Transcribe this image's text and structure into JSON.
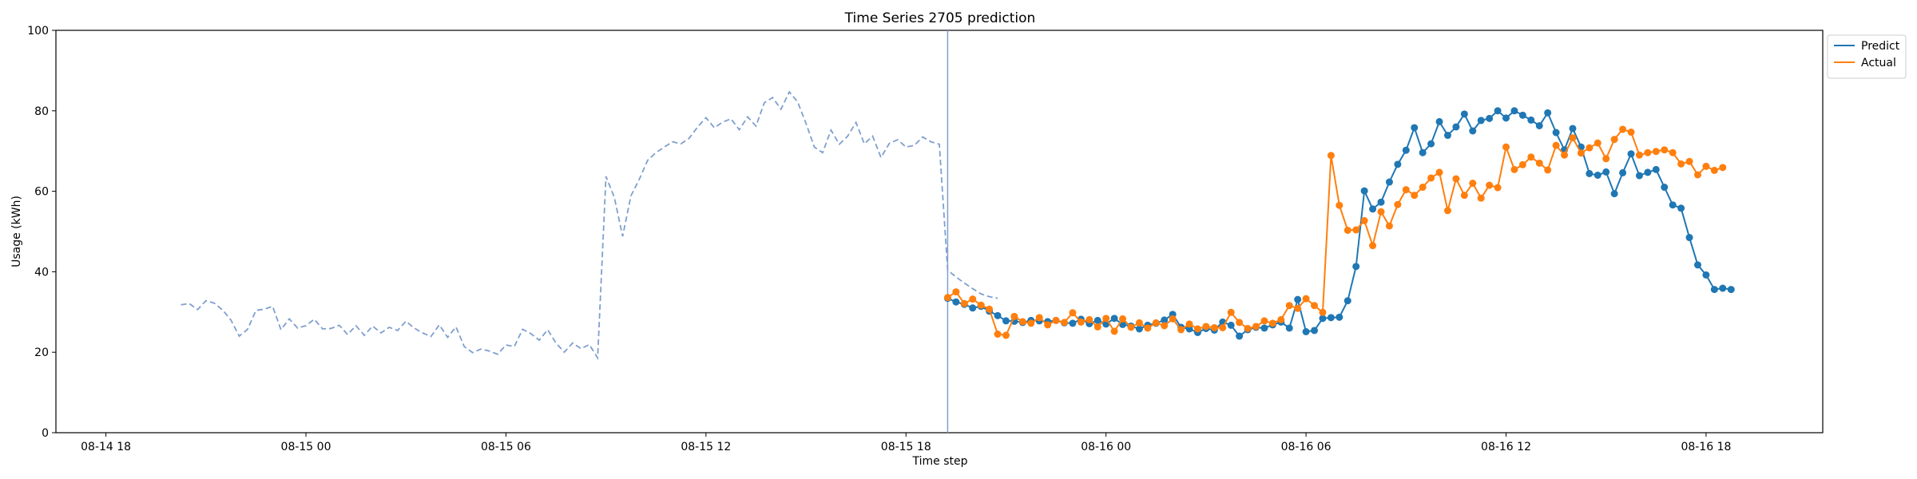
{
  "chart_data": {
    "type": "line",
    "title": "Time Series 2705 prediction",
    "xlabel": "Time step",
    "ylabel": "Usage (kWh)",
    "ylim": [
      0,
      100
    ],
    "yticks": [
      0,
      20,
      40,
      60,
      80,
      100
    ],
    "xlim": [
      "2025-08-14 16:30",
      "2025-08-16 21:30"
    ],
    "xticks": [
      {
        "t": "2025-08-14 18:00",
        "label": "08-14 18"
      },
      {
        "t": "2025-08-15 00:00",
        "label": "08-15 00"
      },
      {
        "t": "2025-08-15 06:00",
        "label": "08-15 06"
      },
      {
        "t": "2025-08-15 12:00",
        "label": "08-15 12"
      },
      {
        "t": "2025-08-15 18:00",
        "label": "08-15 18"
      },
      {
        "t": "2025-08-16 00:00",
        "label": "08-16 00"
      },
      {
        "t": "2025-08-16 06:00",
        "label": "08-16 06"
      },
      {
        "t": "2025-08-16 12:00",
        "label": "08-16 12"
      },
      {
        "t": "2025-08-16 18:00",
        "label": "08-16 18"
      }
    ],
    "forecast_start": "2025-08-15 19:15",
    "grid": false,
    "legend": "outside top-right",
    "history": {
      "start": "2025-08-14 20:15",
      "interval_minutes": 15,
      "color": "#7f9fcf",
      "style": "dashed",
      "values": [
        31.8,
        32.1,
        30.6,
        32.8,
        32.2,
        30.5,
        28.0,
        24.0,
        25.7,
        30.4,
        30.7,
        31.4,
        25.6,
        28.3,
        26.0,
        26.6,
        28.2,
        25.8,
        25.9,
        26.7,
        24.4,
        26.6,
        24.2,
        26.5,
        24.8,
        26.2,
        25.4,
        27.7,
        26.0,
        24.8,
        23.9,
        26.8,
        23.7,
        26.3,
        21.4,
        19.9,
        20.8,
        20.3,
        19.5,
        21.8,
        21.4,
        25.7,
        24.6,
        23.0,
        25.6,
        22.3,
        20.0,
        22.3,
        20.9,
        21.9,
        18.6,
        63.7,
        58.5,
        48.8,
        58.9,
        63.0,
        67.7,
        69.6,
        71.0,
        72.3,
        71.8,
        73.2,
        76.0,
        78.3,
        75.8,
        77.2,
        78.0,
        75.3,
        78.5,
        76.2,
        82.0,
        83.3,
        80.4,
        84.7,
        82.2,
        76.9,
        71.0,
        69.6,
        75.2,
        71.7,
        73.7,
        77.1,
        71.8,
        73.7,
        68.4,
        71.9,
        72.8,
        71.0,
        71.4,
        73.5,
        72.3,
        71.7,
        40.4,
        38.7,
        37.2,
        35.8,
        34.5,
        33.8,
        33.4
      ]
    },
    "x_start": "2025-08-15 19:15",
    "x_interval_minutes": 15,
    "series": [
      {
        "name": "Predict",
        "color": "#1f77b4",
        "values": [
          33.4,
          32.5,
          31.9,
          31.0,
          31.4,
          30.2,
          29.1,
          27.8,
          27.7,
          27.4,
          27.9,
          27.8,
          27.6,
          27.9,
          27.3,
          27.2,
          28.2,
          27.1,
          27.9,
          27.0,
          28.4,
          26.9,
          26.5,
          25.8,
          26.7,
          27.2,
          28.0,
          29.4,
          26.2,
          25.8,
          24.9,
          25.9,
          25.5,
          27.5,
          26.7,
          24.0,
          25.6,
          26.2,
          26.0,
          26.8,
          27.5,
          26.0,
          33.1,
          25.1,
          25.4,
          28.4,
          28.6,
          28.7,
          32.8,
          41.3,
          60.1,
          55.6,
          57.3,
          62.3,
          66.7,
          70.2,
          75.8,
          69.6,
          71.8,
          77.3,
          73.9,
          76.0,
          79.2,
          75.0,
          77.6,
          78.1,
          80.0,
          78.2,
          80.0,
          78.9,
          77.7,
          76.3,
          79.5,
          74.6,
          70.3,
          75.6,
          71.0,
          64.4,
          64.0,
          64.8,
          59.4,
          64.6,
          69.3,
          63.9,
          64.7,
          65.4,
          61.0,
          56.6,
          55.8,
          48.5,
          41.7,
          39.2,
          35.6,
          35.9,
          35.6
        ]
      },
      {
        "name": "Actual",
        "color": "#ff7f0e",
        "values": [
          33.6,
          35.0,
          32.1,
          33.2,
          31.7,
          30.7,
          24.5,
          24.2,
          28.9,
          27.6,
          27.2,
          28.6,
          26.8,
          27.9,
          27.4,
          29.8,
          27.5,
          28.1,
          26.3,
          28.4,
          25.2,
          28.3,
          26.2,
          27.3,
          26.0,
          27.3,
          26.6,
          28.3,
          25.6,
          27.0,
          25.8,
          26.4,
          26.1,
          26.1,
          29.9,
          27.4,
          25.9,
          26.4,
          27.8,
          27.2,
          28.1,
          31.6,
          30.9,
          33.3,
          31.6,
          29.9,
          68.9,
          56.5,
          50.3,
          50.4,
          52.7,
          46.5,
          54.9,
          51.4,
          56.7,
          60.4,
          59.0,
          61.0,
          63.3,
          64.7,
          55.2,
          63.1,
          59.0,
          62.0,
          58.3,
          61.5,
          60.9,
          71.0,
          65.4,
          66.6,
          68.5,
          67.0,
          65.3,
          71.4,
          69.0,
          73.3,
          69.5,
          70.8,
          72.0,
          68.1,
          72.9,
          75.4,
          74.7,
          69.0,
          69.6,
          69.9,
          70.3,
          69.6,
          66.8,
          67.4,
          64.1,
          66.2,
          65.2,
          65.9
        ]
      }
    ]
  }
}
